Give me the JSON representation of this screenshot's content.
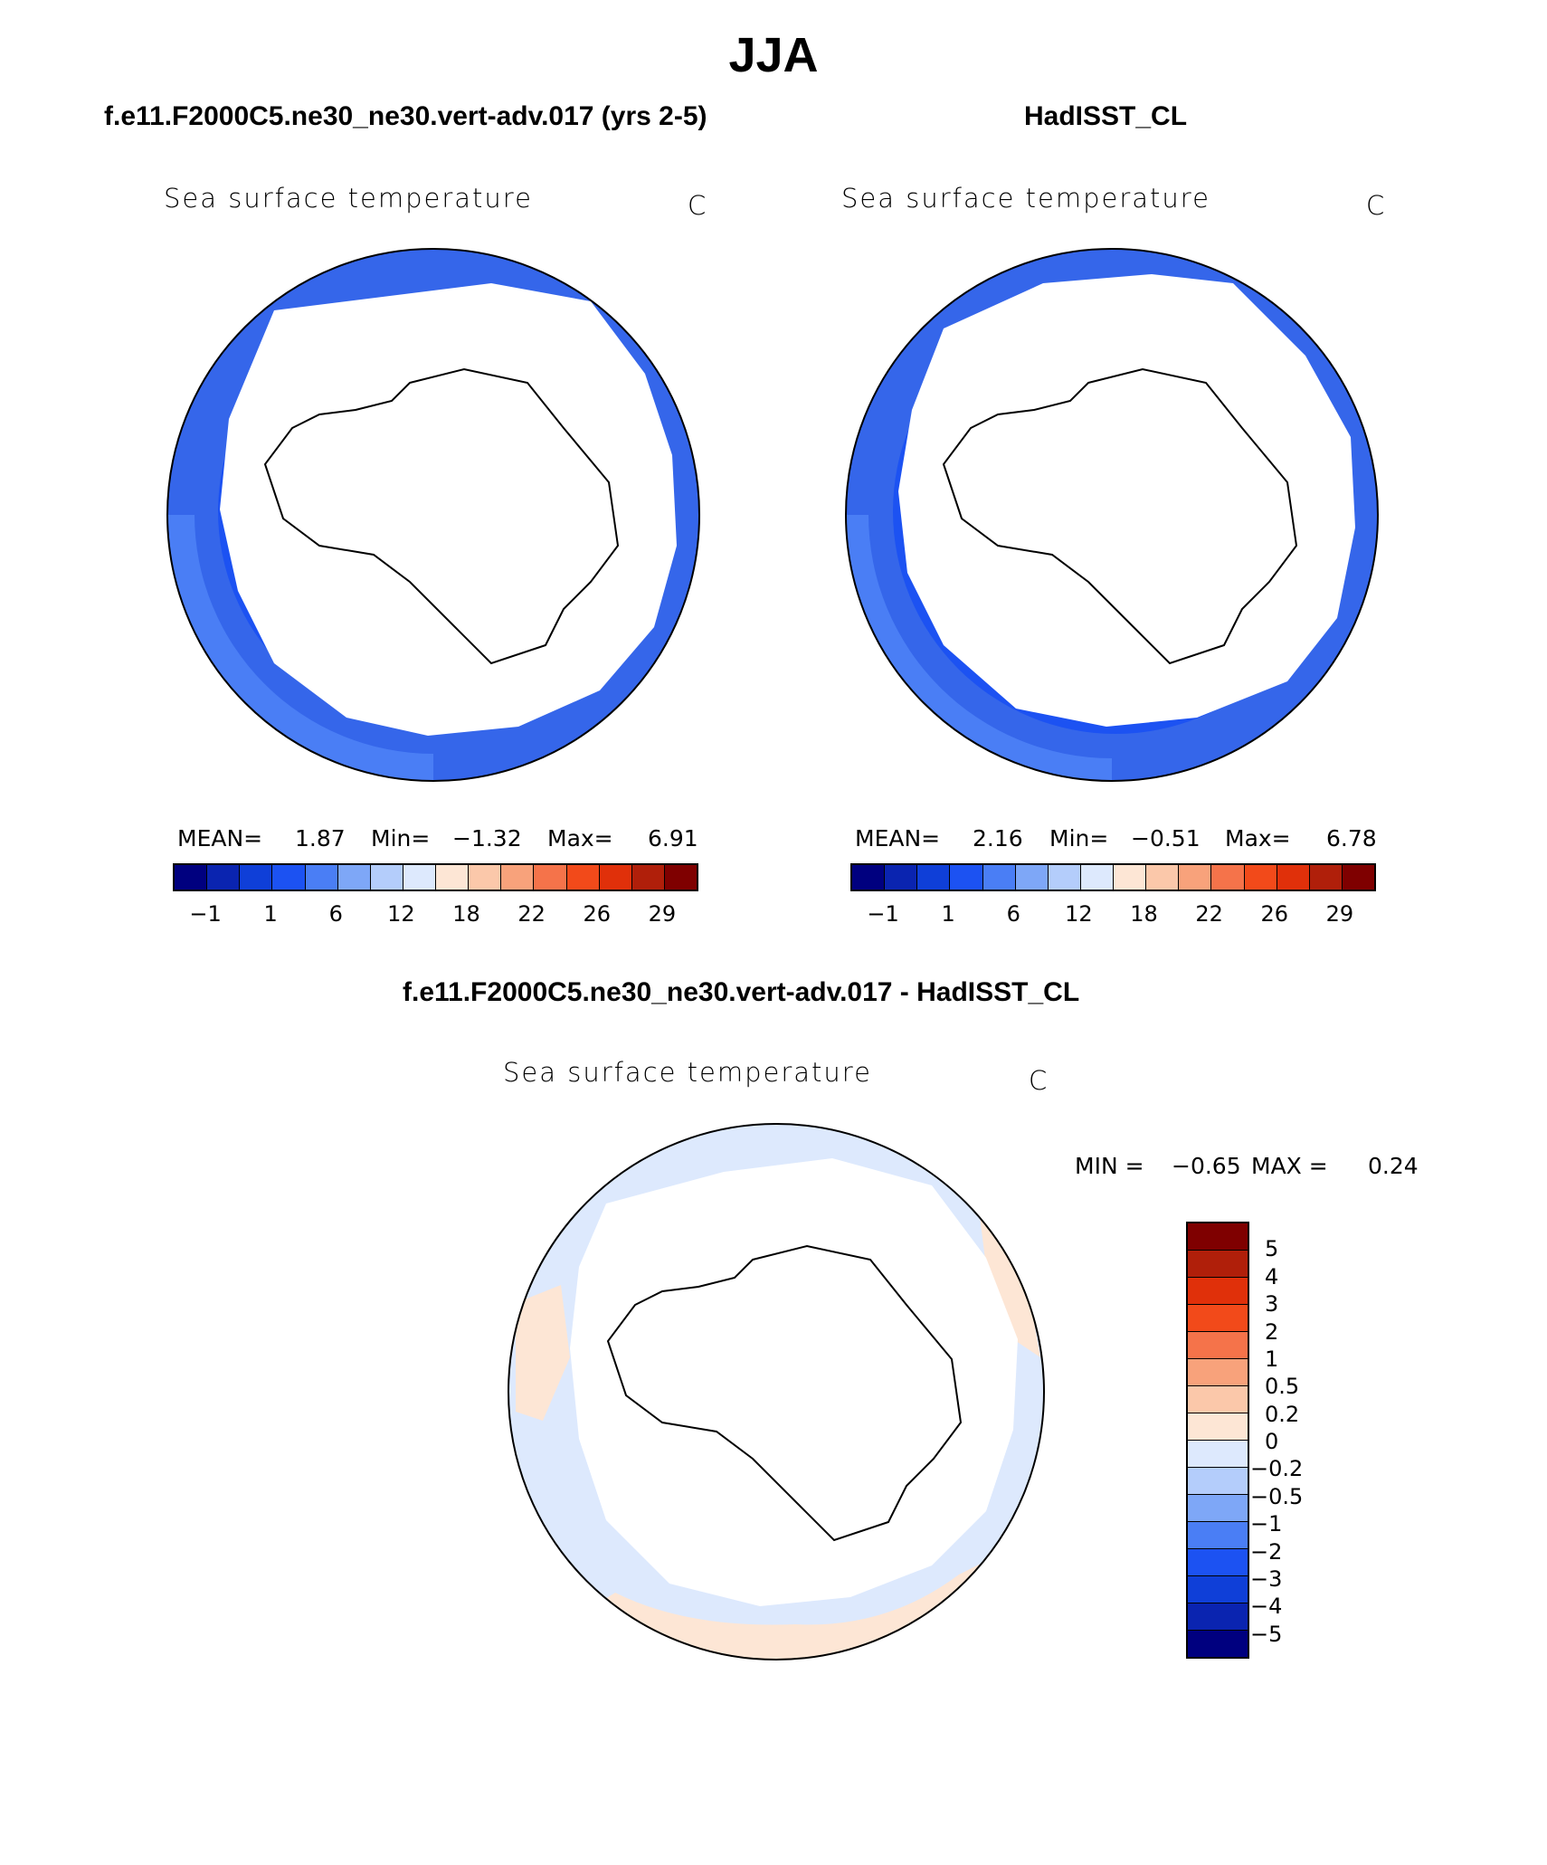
{
  "title": "JJA",
  "panels": [
    {
      "id": "model",
      "heading": "f.e11.F2000C5.ne30_ne30.vert-adv.017 (yrs 2-5)",
      "variable": "Sea surface temperature",
      "units": "C",
      "stats": {
        "mean_label": "MEAN=",
        "mean": "1.87",
        "min_label": "Min=",
        "min": "−1.32",
        "max_label": "Max=",
        "max": "6.91"
      }
    },
    {
      "id": "obs",
      "heading": "HadISST_CL",
      "variable": "Sea surface temperature",
      "units": "C",
      "stats": {
        "mean_label": "MEAN=",
        "mean": "2.16",
        "min_label": "Min=",
        "min": "−0.51",
        "max_label": "Max=",
        "max": "6.78"
      }
    }
  ],
  "abs_colorbar": {
    "colors": [
      "#00007f",
      "#0a24b0",
      "#0f3fd8",
      "#1c52f2",
      "#4a7ef5",
      "#7ea7f7",
      "#b4cdfb",
      "#dde9fd",
      "#fde6d5",
      "#fbc8aa",
      "#f8a27b",
      "#f5734a",
      "#f24a1a",
      "#e0300a",
      "#b01f0a",
      "#7f0000"
    ],
    "labels": [
      "−1",
      "1",
      "6",
      "12",
      "18",
      "22",
      "26",
      "29"
    ]
  },
  "difference": {
    "heading": "f.e11.F2000C5.ne30_ne30.vert-adv.017 - HadISST_CL",
    "variable": "Sea surface temperature",
    "units": "C",
    "stats": {
      "min_label": "MIN =",
      "min": "−0.65",
      "max_label": "MAX =",
      "max": "0.24"
    },
    "colorbar": {
      "colors": [
        "#7f0000",
        "#b01f0a",
        "#e0300a",
        "#f24a1a",
        "#f5734a",
        "#f8a27b",
        "#fbc8aa",
        "#fde6d5",
        "#dde9fd",
        "#b4cdfb",
        "#7ea7f7",
        "#4a7ef5",
        "#1c52f2",
        "#0f3fd8",
        "#0a24b0",
        "#00007f"
      ],
      "labels": [
        "5",
        "4",
        "3",
        "2",
        "1",
        "0.5",
        "0.2",
        "0",
        "−0.2",
        "−0.5",
        "−1",
        "−2",
        "−3",
        "−4",
        "−5"
      ]
    }
  }
}
